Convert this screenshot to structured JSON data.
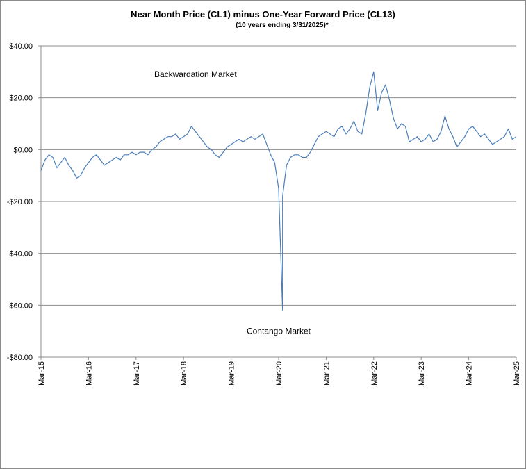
{
  "chart_data": {
    "type": "line",
    "title": "Near Month Price (CL1) minus One-Year Forward Price (CL13)",
    "subtitle": "(10 years ending  3/31/2025)*",
    "xlabel": "",
    "ylabel": "",
    "ylim": [
      -80,
      40
    ],
    "y_ticks": [
      40,
      20,
      0,
      -20,
      -40,
      -60,
      -80
    ],
    "y_tick_labels": [
      "$40.00",
      "$20.00",
      "$0.00",
      "-$20.00",
      "-$40.00",
      "-$60.00",
      "-$80.00"
    ],
    "x_range": [
      "2015-03",
      "2025-03"
    ],
    "x_tick_labels": [
      "Mar-15",
      "Mar-16",
      "Mar-17",
      "Mar-18",
      "Mar-19",
      "Mar-20",
      "Mar-21",
      "Mar-22",
      "Mar-23",
      "Mar-24",
      "Mar-25"
    ],
    "grid": "horizontal",
    "legend": "none",
    "line_color": "#4a7ebb",
    "annotations": [
      {
        "text": "Backwardation Market",
        "x": "2018-06",
        "y": 28
      },
      {
        "text": "Contango Market",
        "x": "2020-03",
        "y": -71
      }
    ],
    "series": [
      {
        "x": [
          "2015-03",
          "2015-04",
          "2015-05",
          "2015-06",
          "2015-07",
          "2015-08",
          "2015-09",
          "2015-10",
          "2015-11",
          "2015-12",
          "2016-01",
          "2016-02",
          "2016-03",
          "2016-04",
          "2016-05",
          "2016-06",
          "2016-07",
          "2016-08",
          "2016-09",
          "2016-10",
          "2016-11",
          "2016-12",
          "2017-01",
          "2017-02",
          "2017-03",
          "2017-04",
          "2017-05",
          "2017-06",
          "2017-07",
          "2017-08",
          "2017-09",
          "2017-10",
          "2017-11",
          "2017-12",
          "2018-01",
          "2018-02",
          "2018-03",
          "2018-04",
          "2018-05",
          "2018-06",
          "2018-07",
          "2018-08",
          "2018-09",
          "2018-10",
          "2018-11",
          "2018-12",
          "2019-01",
          "2019-02",
          "2019-03",
          "2019-04",
          "2019-05",
          "2019-06",
          "2019-07",
          "2019-08",
          "2019-09",
          "2019-10",
          "2019-11",
          "2019-12",
          "2020-01",
          "2020-02",
          "2020-03",
          "2020-04",
          "2020-04",
          "2020-05",
          "2020-06",
          "2020-07",
          "2020-08",
          "2020-09",
          "2020-10",
          "2020-11",
          "2020-12",
          "2021-01",
          "2021-02",
          "2021-03",
          "2021-04",
          "2021-05",
          "2021-06",
          "2021-07",
          "2021-08",
          "2021-09",
          "2021-10",
          "2021-11",
          "2021-12",
          "2022-01",
          "2022-02",
          "2022-03",
          "2022-04",
          "2022-05",
          "2022-06",
          "2022-07",
          "2022-08",
          "2022-09",
          "2022-10",
          "2022-11",
          "2022-12",
          "2023-01",
          "2023-02",
          "2023-03",
          "2023-04",
          "2023-05",
          "2023-06",
          "2023-07",
          "2023-08",
          "2023-09",
          "2023-10",
          "2023-11",
          "2023-12",
          "2024-01",
          "2024-02",
          "2024-03",
          "2024-04",
          "2024-05",
          "2024-06",
          "2024-07",
          "2024-08",
          "2024-09",
          "2024-10",
          "2024-11",
          "2024-12",
          "2025-01",
          "2025-02",
          "2025-03"
        ],
        "values": [
          -8,
          -4,
          -2,
          -3,
          -7,
          -5,
          -3,
          -6,
          -8,
          -11,
          -10,
          -7,
          -5,
          -3,
          -2,
          -4,
          -6,
          -5,
          -4,
          -3,
          -4,
          -2,
          -2,
          -1,
          -2,
          -1,
          -1,
          -2,
          0,
          1,
          3,
          4,
          5,
          5,
          6,
          4,
          5,
          6,
          9,
          7,
          5,
          3,
          1,
          0,
          -2,
          -3,
          -1,
          1,
          2,
          3,
          4,
          3,
          4,
          5,
          4,
          5,
          6,
          2,
          -2,
          -5,
          -15,
          -62,
          -18,
          -6,
          -3,
          -2,
          -2,
          -3,
          -3,
          -1,
          2,
          5,
          6,
          7,
          6,
          5,
          8,
          9,
          6,
          8,
          11,
          7,
          6,
          14,
          24,
          30,
          15,
          22,
          25,
          19,
          12,
          8,
          10,
          9,
          3,
          4,
          5,
          3,
          4,
          6,
          3,
          4,
          7,
          13,
          8,
          5,
          1,
          3,
          5,
          8,
          9,
          7,
          5,
          6,
          4,
          2,
          3,
          4,
          5,
          8,
          4,
          5
        ]
      }
    ]
  }
}
